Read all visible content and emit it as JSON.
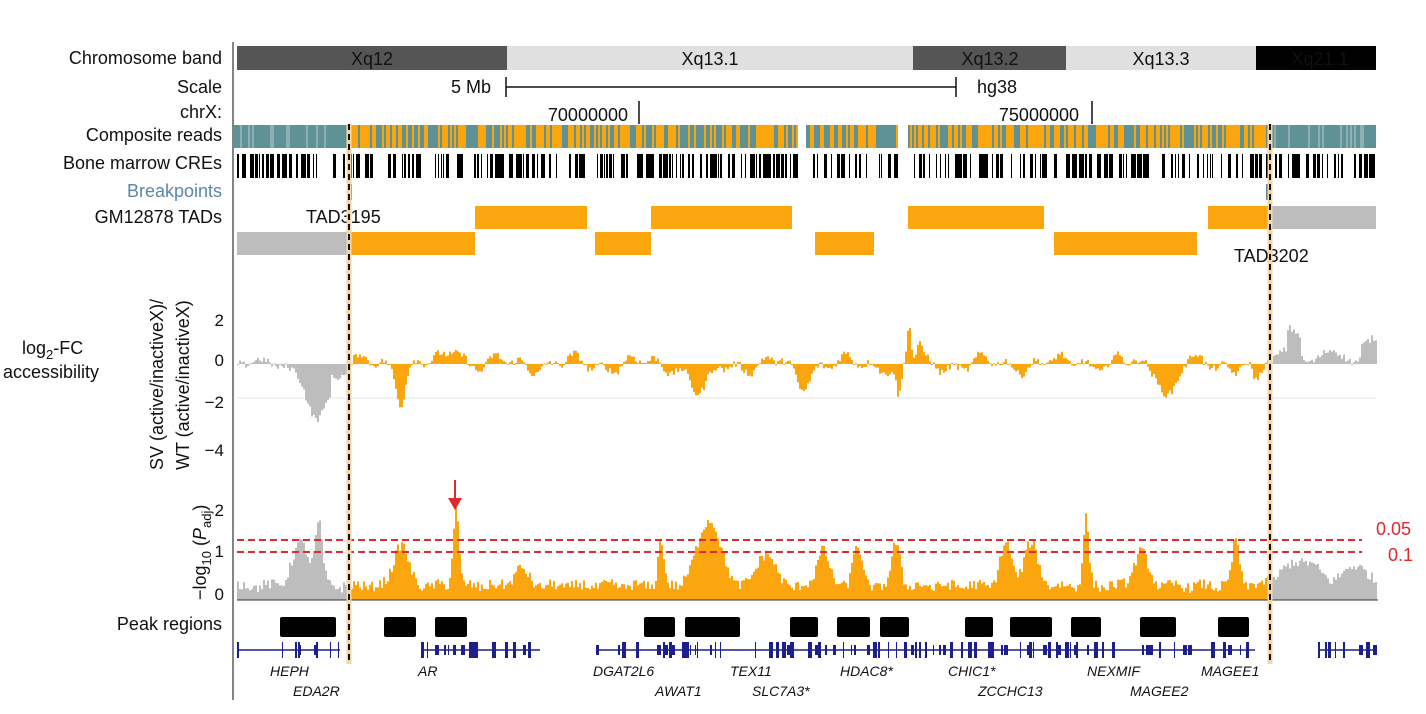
{
  "tracks": {
    "chromosome_band": "Chromosome band",
    "scale": "Scale",
    "chrx": "chrX:",
    "composite_reads": "Composite reads",
    "cres": "Bone marrow CREs",
    "breakpoints": "Breakpoints",
    "tads": "GM12878 TADs",
    "peak_regions": "Peak regions"
  },
  "bands": [
    {
      "label": "Xq12",
      "shade": "#555555",
      "text": "#ffffff"
    },
    {
      "label": "Xq13.1",
      "shade": "#e0e0e0",
      "text": "#111111"
    },
    {
      "label": "Xq13.2",
      "shade": "#555555",
      "text": "#ffffff"
    },
    {
      "label": "Xq13.3",
      "shade": "#e0e0e0",
      "text": "#111111"
    },
    {
      "label": "Xq21.1",
      "shade": "#000000",
      "text": "#ffffff"
    }
  ],
  "scale": {
    "length": "5 Mb",
    "assembly": "hg38"
  },
  "coordinates": [
    "70000000",
    "75000000"
  ],
  "tad_labels": {
    "left": "TAD3195",
    "right": "TAD3202"
  },
  "accessibility": {
    "ylabel_line1": "log",
    "ylabel_sub": "2",
    "ylabel_rest": "-FC",
    "ylabel_line2": "accessibility",
    "rotated_line1": "SV (active/inactiveX)/",
    "rotated_line2": "WT (active/inactiveX)",
    "ticks": [
      "2",
      "0",
      "−2",
      "−4"
    ]
  },
  "significance": {
    "ylabel_pre": "−log",
    "ylabel_sub": "10",
    "ylabel_paren_open": " (",
    "ylabel_p": "P",
    "ylabel_adj": "adj",
    "ylabel_paren_close": ")",
    "ticks": [
      "2",
      "1",
      "0"
    ],
    "threshold_high": "0.05",
    "threshold_low": "0.1"
  },
  "genes": [
    "HEPH",
    "EDA2R",
    "AR",
    "DGAT2L6",
    "AWAT1",
    "TEX11",
    "SLC7A3*",
    "HDAC8*",
    "CHIC1*",
    "ZCCHC13",
    "NEXMIF",
    "MAGEE2",
    "MAGEE1"
  ],
  "colors": {
    "orange": "#fca60f",
    "grey": "#bdbdbd",
    "teal": "#5e9296",
    "navy": "#1c1f8c",
    "red": "#e0282d",
    "blue_label": "#5b86a8"
  }
}
